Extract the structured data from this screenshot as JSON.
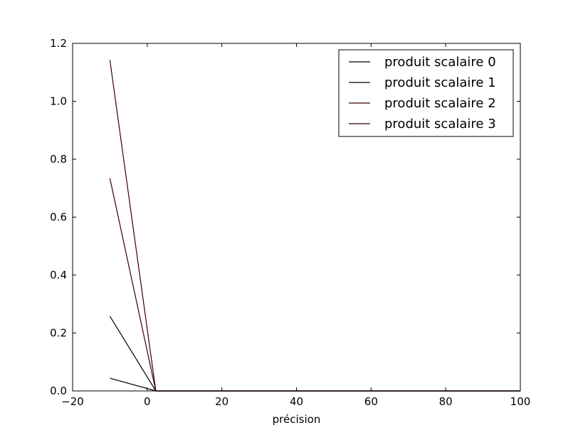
{
  "chart_data": {
    "type": "line",
    "title": "",
    "xlabel": "précision",
    "ylabel": "",
    "xlim": [
      -20,
      100
    ],
    "ylim": [
      0,
      1.2
    ],
    "x_ticks": [
      -20,
      0,
      20,
      40,
      60,
      80,
      100
    ],
    "x_tick_labels": [
      "−20",
      "0",
      "20",
      "40",
      "60",
      "80",
      "100"
    ],
    "y_ticks": [
      0.0,
      0.2,
      0.4,
      0.6,
      0.8,
      1.0,
      1.2
    ],
    "y_tick_labels": [
      "0.0",
      "0.2",
      "0.4",
      "0.6",
      "0.8",
      "1.0",
      "1.2"
    ],
    "grid": false,
    "legend_position": "top-right",
    "series": [
      {
        "name": "produit scalaire 0",
        "color": "#000000",
        "x": [
          -10,
          2.3,
          100
        ],
        "y": [
          0.044,
          0.0,
          0.0
        ]
      },
      {
        "name": "produit scalaire 1",
        "color": "#000000",
        "x": [
          -10,
          2.3,
          100
        ],
        "y": [
          0.258,
          0.0,
          0.0
        ]
      },
      {
        "name": "produit scalaire 2",
        "color": "#3a0000",
        "x": [
          -10,
          2.3,
          100
        ],
        "y": [
          0.734,
          0.0,
          0.0
        ]
      },
      {
        "name": "produit scalaire 3",
        "color": "#3a0000",
        "x": [
          -10,
          2.3,
          100
        ],
        "y": [
          1.142,
          0.0,
          0.0
        ]
      }
    ]
  }
}
